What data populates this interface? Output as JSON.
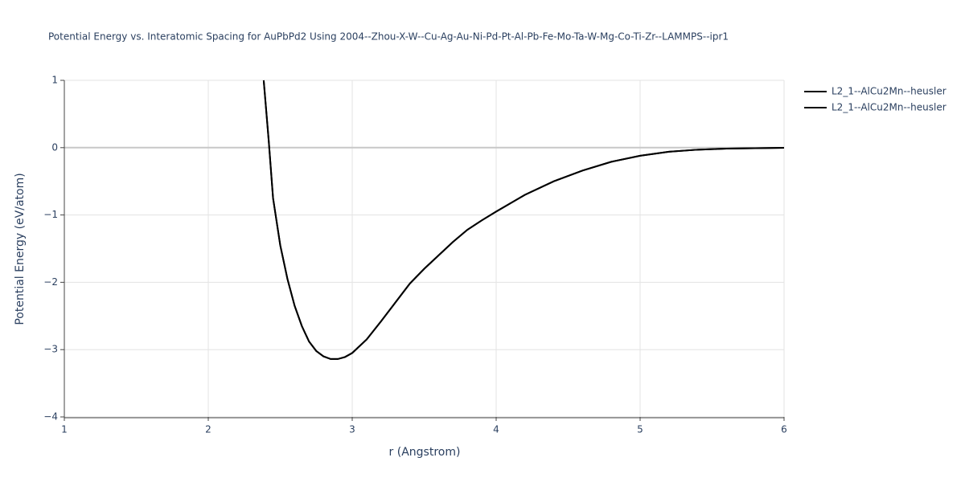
{
  "chart_data": {
    "type": "line",
    "title": "Potential Energy vs. Interatomic Spacing for AuPbPd2 Using 2004--Zhou-X-W--Cu-Ag-Au-Ni-Pd-Pt-Al-Pb-Fe-Mo-Ta-W-Mg-Co-Ti-Zr--LAMMPS--ipr1",
    "x_label": "r (Angstrom)",
    "y_label": "Potential Energy (eV/atom)",
    "x": [
      2.385,
      2.42,
      2.45,
      2.5,
      2.55,
      2.6,
      2.65,
      2.7,
      2.75,
      2.8,
      2.85,
      2.9,
      2.95,
      3.0,
      3.1,
      3.2,
      3.3,
      3.4,
      3.5,
      3.6,
      3.7,
      3.8,
      3.9,
      4.0,
      4.2,
      4.4,
      4.6,
      4.8,
      5.0,
      5.2,
      5.4,
      5.6,
      5.8,
      6.0
    ],
    "series": [
      {
        "name": "L2_1--AlCu2Mn--heusler",
        "color": "#000000",
        "values": [
          1.0,
          0.1,
          -0.75,
          -1.45,
          -1.95,
          -2.35,
          -2.65,
          -2.88,
          -3.02,
          -3.1,
          -3.14,
          -3.14,
          -3.11,
          -3.05,
          -2.85,
          -2.58,
          -2.3,
          -2.02,
          -1.8,
          -1.6,
          -1.4,
          -1.22,
          -1.08,
          -0.95,
          -0.7,
          -0.5,
          -0.34,
          -0.21,
          -0.12,
          -0.06,
          -0.03,
          -0.015,
          -0.008,
          -0.003
        ]
      },
      {
        "name": "L2_1--AlCu2Mn--heusler",
        "color": "#000000",
        "values": [
          1.0,
          0.1,
          -0.75,
          -1.45,
          -1.95,
          -2.35,
          -2.65,
          -2.88,
          -3.02,
          -3.1,
          -3.14,
          -3.14,
          -3.11,
          -3.05,
          -2.85,
          -2.58,
          -2.3,
          -2.02,
          -1.8,
          -1.6,
          -1.4,
          -1.22,
          -1.08,
          -0.95,
          -0.7,
          -0.5,
          -0.34,
          -0.21,
          -0.12,
          -0.06,
          -0.03,
          -0.015,
          -0.008,
          -0.003
        ]
      }
    ],
    "xlim": [
      1,
      6
    ],
    "xticks": [
      1,
      2,
      3,
      4,
      5,
      6
    ],
    "ylim": [
      -4,
      1
    ],
    "yticks": [
      {
        "value": -4,
        "label": "−4"
      },
      {
        "value": -3,
        "label": "−3"
      },
      {
        "value": -2,
        "label": "−2"
      },
      {
        "value": -1,
        "label": "−1"
      },
      0,
      1
    ],
    "grid": true,
    "legend": "top-right"
  }
}
